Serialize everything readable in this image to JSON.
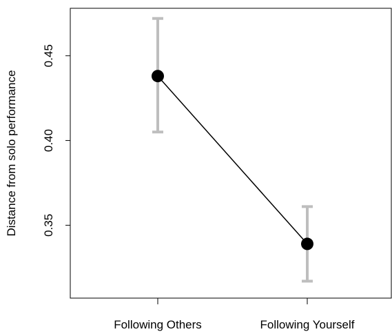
{
  "chart_data": {
    "type": "line",
    "categories": [
      "Following Others",
      "Following Yourself"
    ],
    "values": [
      0.438,
      0.339
    ],
    "error_bars": {
      "lower": [
        0.405,
        0.317
      ],
      "upper": [
        0.472,
        0.361
      ]
    },
    "title": "",
    "xlabel": "",
    "ylabel": "Distance from solo performance",
    "ylim": [
      0.307,
      0.478
    ],
    "y_ticks": [
      0.35,
      0.4,
      0.45
    ],
    "y_tick_labels": [
      "0.35",
      "0.40",
      "0.45"
    ],
    "grid": false,
    "colors": {
      "line": "#000000",
      "marker": "#000000",
      "error_bar": "#bebebe",
      "axis": "#000000"
    }
  }
}
